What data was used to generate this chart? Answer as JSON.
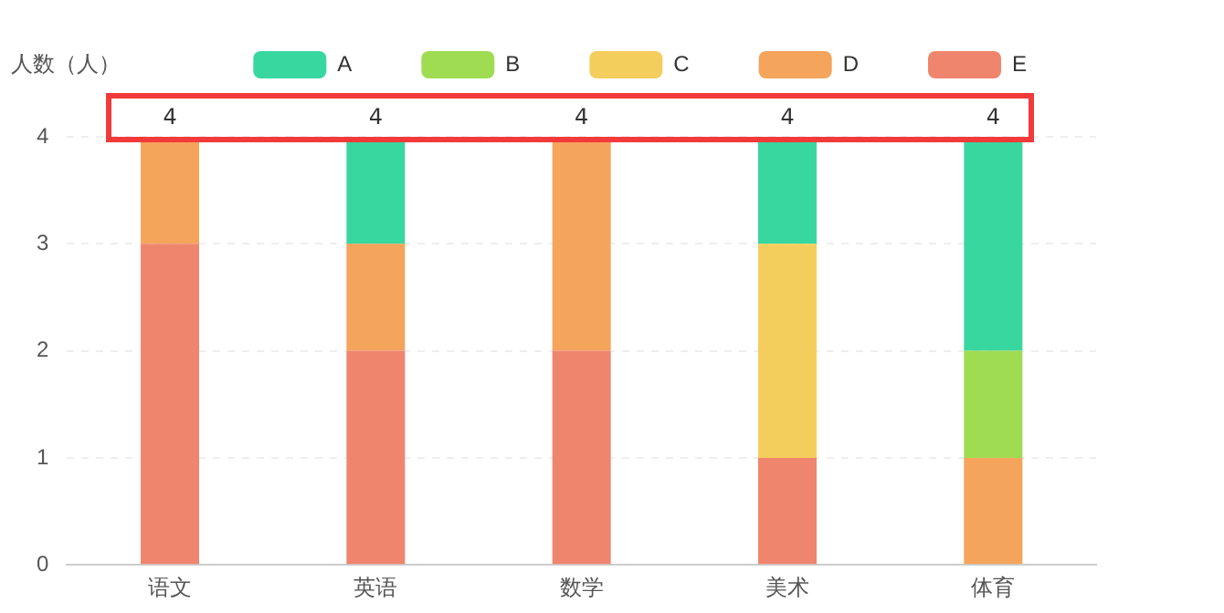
{
  "chart_data": {
    "type": "bar",
    "stacked": true,
    "ylabel": "人数（人）",
    "categories": [
      "语文",
      "英语",
      "数学",
      "美术",
      "体育"
    ],
    "series": [
      {
        "name": "E",
        "color": "#f0856e",
        "values": [
          3,
          2,
          2,
          1,
          0
        ]
      },
      {
        "name": "D",
        "color": "#f5a45c",
        "values": [
          1,
          1,
          2,
          0,
          1
        ]
      },
      {
        "name": "C",
        "color": "#f4ce5c",
        "values": [
          0,
          0,
          0,
          2,
          0
        ]
      },
      {
        "name": "B",
        "color": "#9fdc52",
        "values": [
          0,
          0,
          0,
          0,
          1
        ]
      },
      {
        "name": "A",
        "color": "#38d79f",
        "values": [
          0,
          1,
          0,
          1,
          2
        ]
      }
    ],
    "totals": [
      "4",
      "4",
      "4",
      "4",
      "4"
    ],
    "ylim": [
      0,
      4
    ],
    "yticks": [
      0,
      1,
      2,
      3,
      4
    ],
    "grid": "y",
    "legend": "top right"
  }
}
